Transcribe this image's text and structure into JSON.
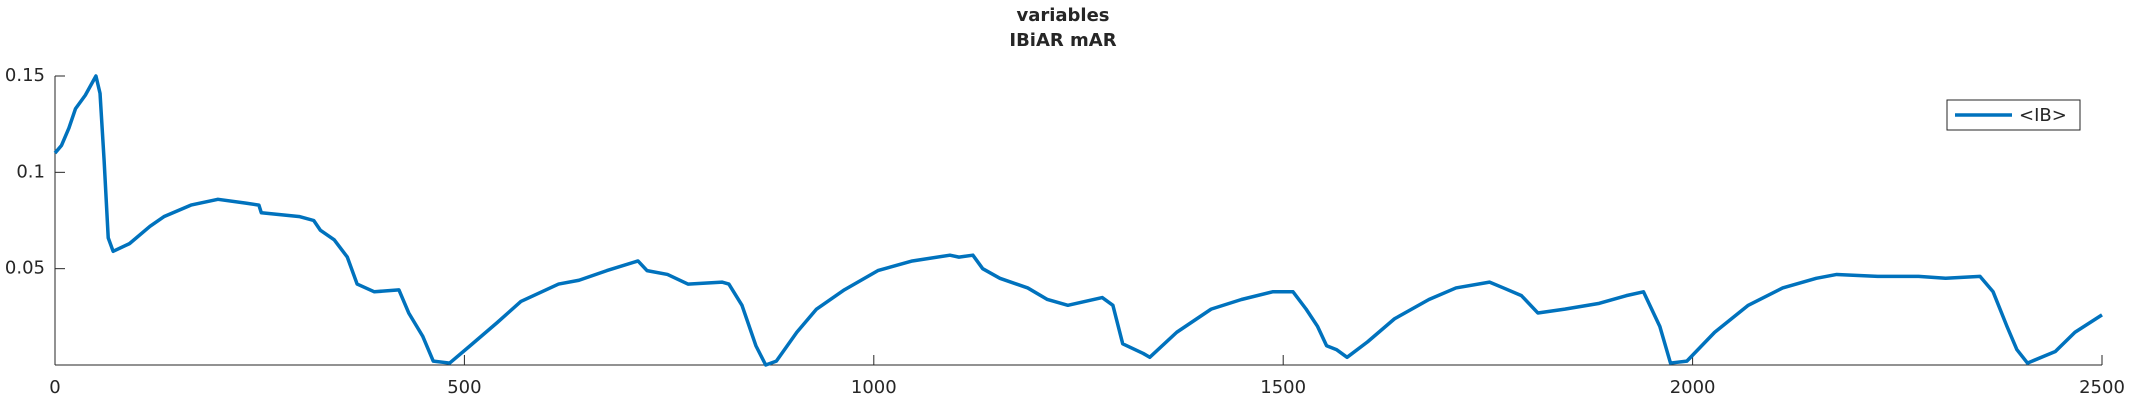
{
  "chart_data": {
    "type": "line",
    "title": "variables",
    "subtitle": "IBiAR mAR",
    "x": [
      0,
      8,
      17,
      25,
      37,
      50,
      55,
      60,
      65,
      71,
      91,
      116,
      133,
      166,
      199,
      233,
      249,
      252,
      299,
      316,
      324,
      341,
      357,
      369,
      390,
      420,
      432,
      449,
      462,
      482,
      507,
      540,
      569,
      615,
      640,
      674,
      712,
      723,
      748,
      773,
      815,
      823,
      839,
      856,
      868,
      881,
      906,
      930,
      964,
      1005,
      1047,
      1093,
      1104,
      1121,
      1133,
      1154,
      1188,
      1212,
      1237,
      1279,
      1292,
      1304,
      1329,
      1337,
      1370,
      1412,
      1449,
      1487,
      1512,
      1528,
      1542,
      1553,
      1565,
      1578,
      1603,
      1636,
      1678,
      1711,
      1752,
      1769,
      1791,
      1811,
      1844,
      1886,
      1919,
      1940,
      1960,
      1973,
      1993,
      2027,
      2068,
      2110,
      2151,
      2176,
      2226,
      2276,
      2309,
      2351,
      2367,
      2384,
      2396,
      2409,
      2443,
      2467,
      2500
    ],
    "series": [
      {
        "name": "<IB>",
        "color": "#0072bd",
        "values": [
          0.11,
          0.114,
          0.123,
          0.133,
          0.14,
          0.15,
          0.141,
          0.106,
          0.066,
          0.059,
          0.063,
          0.072,
          0.077,
          0.083,
          0.086,
          0.084,
          0.083,
          0.079,
          0.077,
          0.075,
          0.07,
          0.065,
          0.056,
          0.042,
          0.038,
          0.039,
          0.027,
          0.015,
          0.002,
          0.001,
          0.01,
          0.022,
          0.033,
          0.042,
          0.044,
          0.049,
          0.054,
          0.049,
          0.047,
          0.042,
          0.043,
          0.042,
          0.031,
          0.01,
          0,
          0.002,
          0.017,
          0.029,
          0.039,
          0.049,
          0.054,
          0.057,
          0.056,
          0.057,
          0.05,
          0.045,
          0.04,
          0.034,
          0.031,
          0.035,
          0.031,
          0.011,
          0.006,
          0.004,
          0.017,
          0.029,
          0.034,
          0.038,
          0.038,
          0.029,
          0.02,
          0.01,
          0.008,
          0.004,
          0.012,
          0.024,
          0.034,
          0.04,
          0.043,
          0.04,
          0.036,
          0.027,
          0.029,
          0.032,
          0.036,
          0.038,
          0.02,
          0.001,
          0.002,
          0.017,
          0.031,
          0.04,
          0.045,
          0.047,
          0.046,
          0.046,
          0.045,
          0.046,
          0.038,
          0.02,
          0.008,
          0.001,
          0.007,
          0.017,
          0.026
        ]
      }
    ],
    "xlim": [
      0,
      2500
    ],
    "xticks": [
      0,
      500,
      1000,
      1500,
      2000,
      2500
    ],
    "ylim": [
      0,
      0.15
    ],
    "yticks": [
      0.05,
      0.1,
      0.15
    ],
    "legend": "top-right"
  }
}
